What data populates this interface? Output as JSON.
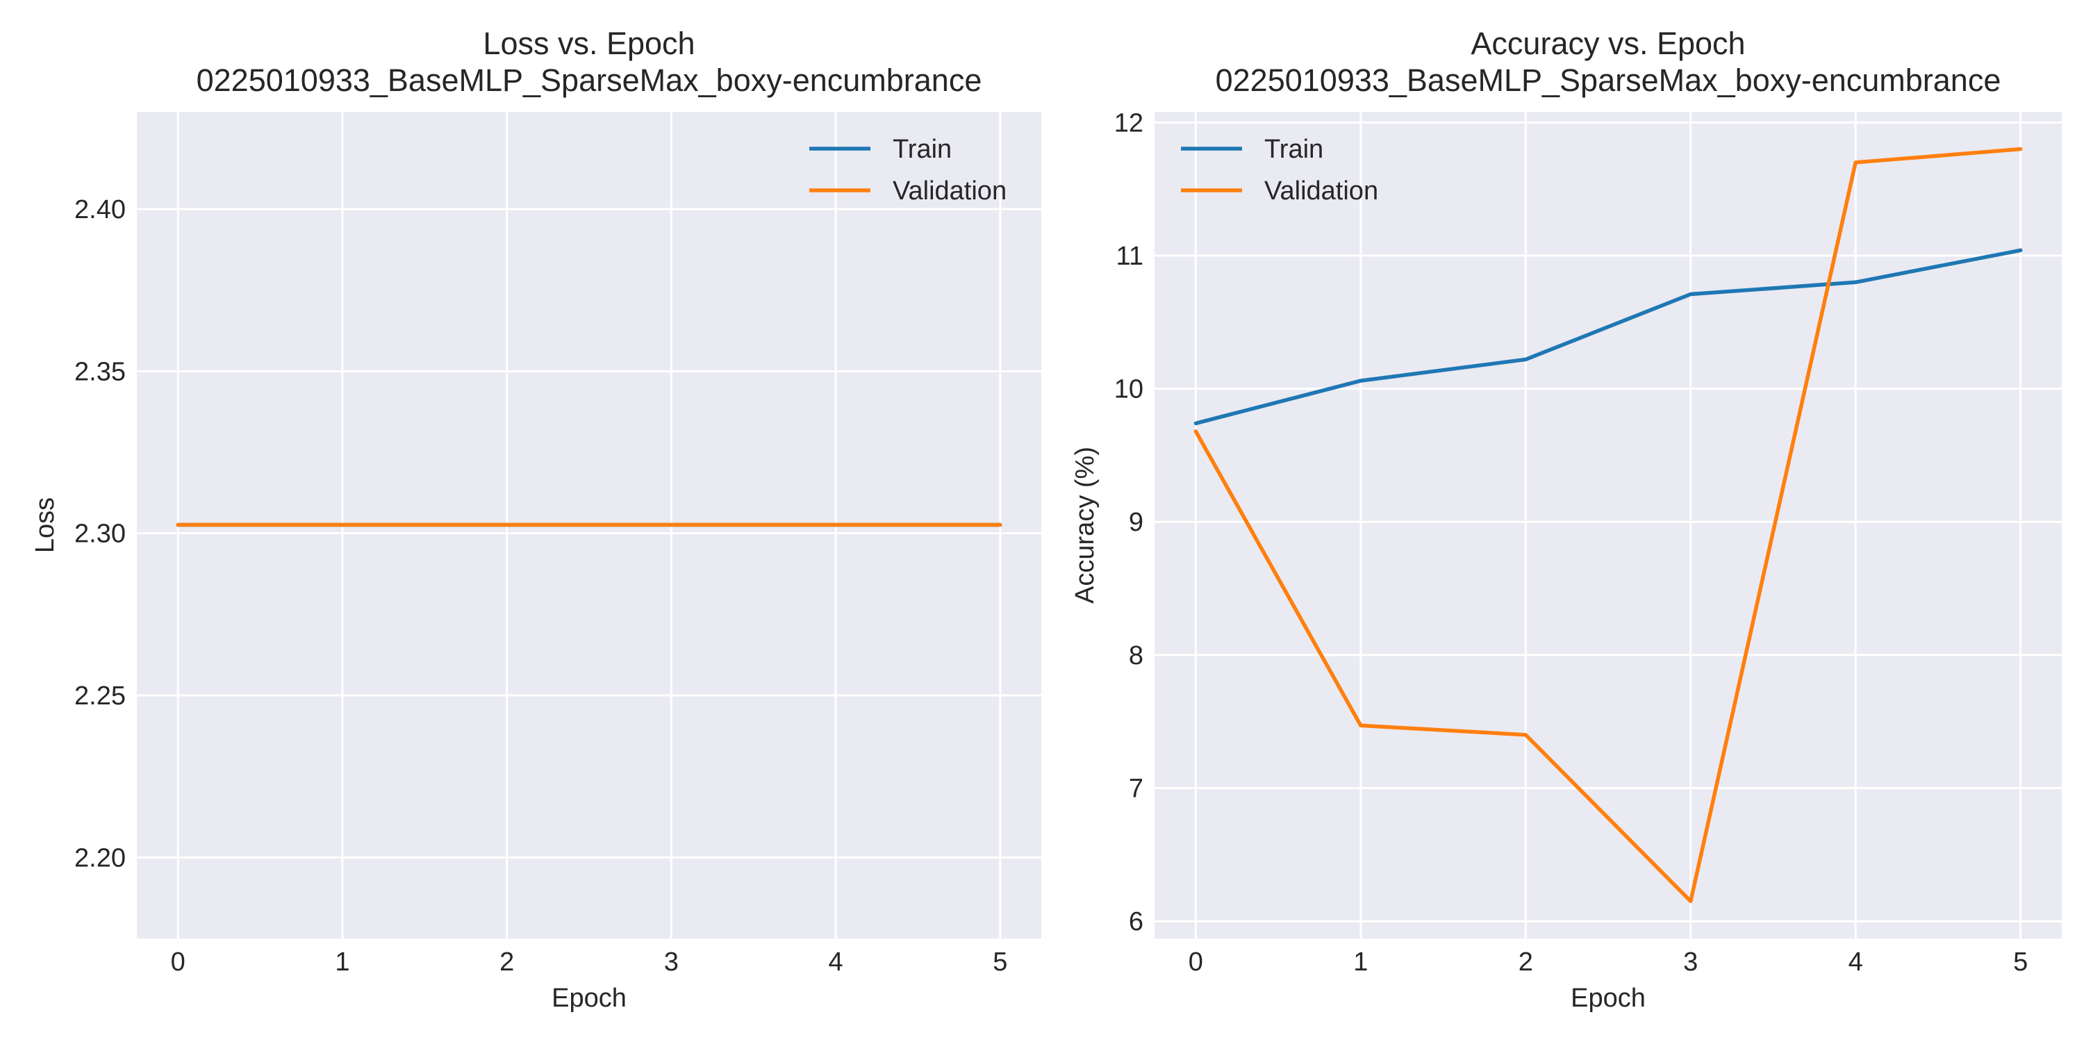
{
  "chart_data": [
    {
      "type": "line",
      "title": "Loss vs. Epoch",
      "subtitle": "0225010933_BaseMLP_SparseMax_boxy-encumbrance",
      "xlabel": "Epoch",
      "ylabel": "Loss",
      "x": [
        0,
        1,
        2,
        3,
        4,
        5
      ],
      "xticks": [
        "0",
        "1",
        "2",
        "3",
        "4",
        "5"
      ],
      "xlim": [
        -0.25,
        5.25
      ],
      "ylim": [
        2.175,
        2.43
      ],
      "yticks": [
        "2.20",
        "2.25",
        "2.30",
        "2.35",
        "2.40"
      ],
      "grid": true,
      "legend": "top-right",
      "series": [
        {
          "name": "Train",
          "color": "#1f77b4",
          "values": [
            2.3026,
            2.3026,
            2.3026,
            2.3026,
            2.3026,
            2.3026
          ]
        },
        {
          "name": "Validation",
          "color": "#ff7f0e",
          "values": [
            2.3026,
            2.3026,
            2.3026,
            2.3026,
            2.3026,
            2.3026
          ]
        }
      ]
    },
    {
      "type": "line",
      "title": "Accuracy vs. Epoch",
      "subtitle": "0225010933_BaseMLP_SparseMax_boxy-encumbrance",
      "xlabel": "Epoch",
      "ylabel": "Accuracy (%)",
      "x": [
        0,
        1,
        2,
        3,
        4,
        5
      ],
      "xticks": [
        "0",
        "1",
        "2",
        "3",
        "4",
        "5"
      ],
      "xlim": [
        -0.25,
        5.25
      ],
      "ylim": [
        5.87,
        12.08
      ],
      "yticks": [
        "6",
        "7",
        "8",
        "9",
        "10",
        "11",
        "12"
      ],
      "grid": true,
      "legend": "top-left",
      "series": [
        {
          "name": "Train",
          "color": "#1f77b4",
          "values": [
            9.74,
            10.06,
            10.22,
            10.71,
            10.8,
            11.04
          ]
        },
        {
          "name": "Validation",
          "color": "#ff7f0e",
          "values": [
            9.68,
            7.47,
            7.4,
            6.15,
            11.7,
            11.8
          ]
        }
      ]
    }
  ]
}
